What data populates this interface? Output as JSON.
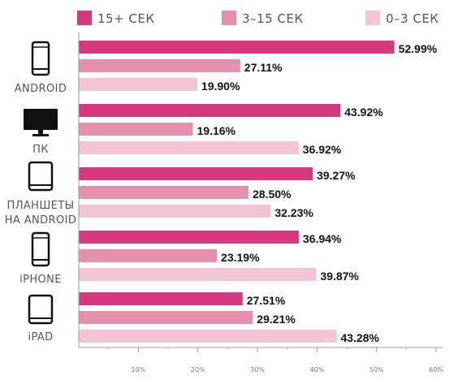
{
  "chart_data": {
    "type": "bar",
    "orientation": "horizontal",
    "categories": [
      "ANDROID",
      "ПК",
      "ПЛАНШЕТЫ НА ANDROID",
      "iPHONE",
      "iPAD"
    ],
    "category_icons": [
      "smartphone-icon",
      "monitor-icon",
      "tablet-icon",
      "smartphone-icon",
      "tablet-icon"
    ],
    "series": [
      {
        "name": "15+ СЕК",
        "color": "#d63a7e",
        "values": [
          52.99,
          43.92,
          39.27,
          36.94,
          27.51
        ]
      },
      {
        "name": "3–15 СЕК",
        "color": "#e68fae",
        "values": [
          27.11,
          19.16,
          28.5,
          23.19,
          29.21
        ]
      },
      {
        "name": "0–3 СЕК",
        "color": "#f2c4d4",
        "values": [
          19.9,
          36.92,
          32.23,
          39.87,
          43.28
        ]
      }
    ],
    "value_labels": [
      [
        "52.99%",
        "27.11%",
        "19.90%"
      ],
      [
        "43.92%",
        "19.16%",
        "36.92%"
      ],
      [
        "39.27%",
        "28.50%",
        "32.23%"
      ],
      [
        "36.94%",
        "23.19%",
        "39.87%"
      ],
      [
        "27.51%",
        "29.21%",
        "43.28%"
      ]
    ],
    "x_ticks": [
      "10%",
      "20%",
      "30%",
      "40%",
      "50%",
      "60%"
    ],
    "xlim": [
      0,
      60
    ],
    "legend_position": "top",
    "grid": false
  }
}
